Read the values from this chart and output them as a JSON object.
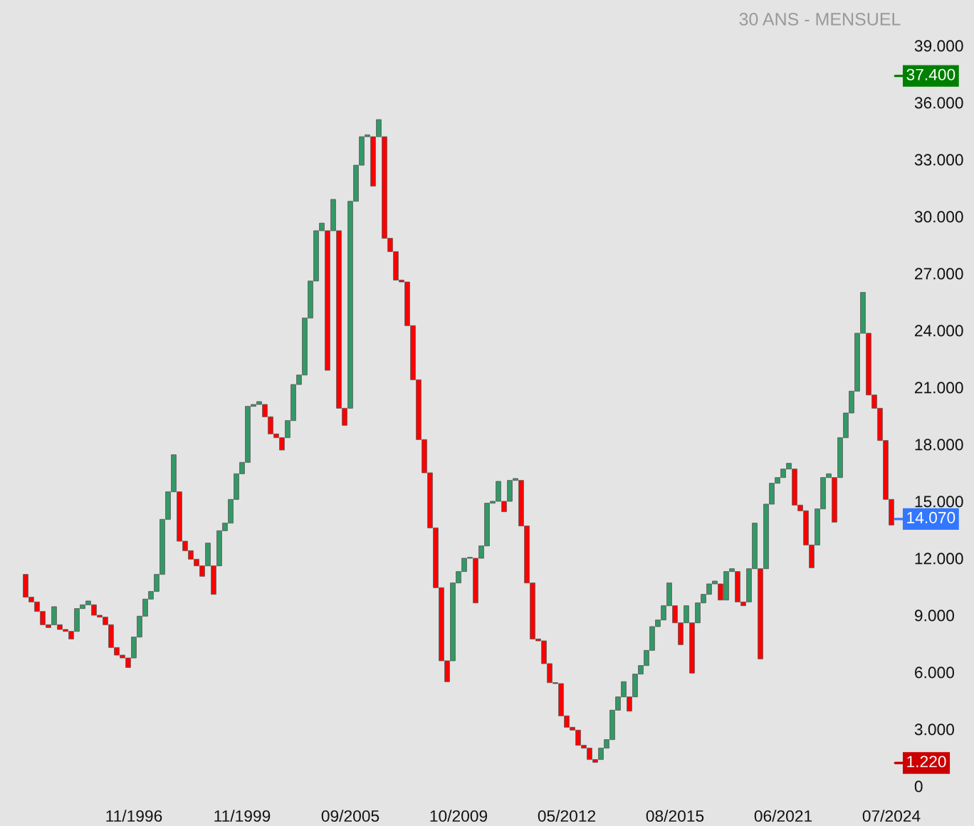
{
  "chart_data": {
    "type": "bar",
    "subtitle": "30 ANS - MENSUEL",
    "categories": [
      null,
      null,
      null,
      null,
      null,
      null,
      null,
      null,
      null,
      null,
      null,
      null,
      null,
      null,
      null,
      null,
      null,
      null,
      null,
      "11/1996",
      null,
      null,
      null,
      null,
      null,
      null,
      null,
      null,
      null,
      null,
      null,
      null,
      null,
      null,
      null,
      null,
      null,
      null,
      "11/1999",
      null,
      null,
      null,
      null,
      null,
      null,
      null,
      null,
      null,
      null,
      null,
      null,
      null,
      null,
      null,
      null,
      null,
      null,
      "09/2005",
      null,
      null,
      null,
      null,
      null,
      null,
      null,
      null,
      null,
      null,
      null,
      null,
      null,
      null,
      null,
      null,
      null,
      null,
      "10/2009",
      null,
      null,
      null,
      null,
      null,
      null,
      null,
      null,
      null,
      null,
      null,
      null,
      null,
      null,
      null,
      null,
      null,
      null,
      "05/2012",
      null,
      null,
      null,
      null,
      null,
      null,
      null,
      null,
      null,
      null,
      null,
      null,
      null,
      null,
      null,
      null,
      null,
      null,
      "08/2015",
      null,
      null,
      null,
      null,
      null,
      null,
      null,
      null,
      null,
      null,
      null,
      null,
      null,
      null,
      null,
      null,
      null,
      null,
      "06/2021",
      null,
      null,
      null,
      null,
      null,
      null,
      null,
      null,
      null,
      null,
      null,
      null,
      null,
      null,
      null,
      null,
      null,
      null,
      "07/2024"
    ],
    "base": [
      11150,
      9950,
      9700,
      9200,
      8500,
      8500,
      8500,
      8250,
      8150,
      8150,
      9350,
      9550,
      9550,
      9000,
      8900,
      8500,
      7300,
      6900,
      6750,
      6750,
      7850,
      8950,
      9850,
      10250,
      11150,
      14050,
      15500,
      15500,
      12900,
      12400,
      11950,
      11600,
      11600,
      11600,
      11600,
      13450,
      13850,
      15100,
      16450,
      17050,
      20000,
      20100,
      20100,
      19450,
      18550,
      18350,
      18350,
      19250,
      21150,
      21650,
      24650,
      26600,
      29250,
      29250,
      29250,
      29250,
      19900,
      19900,
      30800,
      32700,
      34200,
      34200,
      34200,
      34200,
      28850,
      28150,
      26650,
      26550,
      24250,
      21400,
      18250,
      16500,
      13600,
      10450,
      6600,
      6600,
      10700,
      11300,
      12000,
      12000,
      12000,
      12650,
      14900,
      15000,
      15000,
      15000,
      16100,
      16100,
      13700,
      10700,
      7750,
      7650,
      6450,
      5450,
      5400,
      3700,
      3100,
      2950,
      2150,
      2000,
      1400,
      1400,
      2000,
      2450,
      4000,
      4700,
      4700,
      4700,
      5900,
      6350,
      7150,
      8400,
      8750,
      9500,
      9500,
      8600,
      8600,
      8600,
      8600,
      9650,
      10100,
      10650,
      10650,
      9800,
      11300,
      11300,
      9700,
      9700,
      11450,
      11450,
      11450,
      14850,
      15950,
      16250,
      16700,
      16700,
      14800,
      14500,
      12700,
      12700,
      14600,
      16250,
      16250,
      16250,
      18350,
      19650,
      20800,
      23850,
      23850,
      20600,
      19900,
      18200,
      15100
    ],
    "values": [
      -1200,
      -250,
      -500,
      -700,
      -150,
      950,
      -250,
      -100,
      -400,
      1200,
      200,
      200,
      -550,
      -100,
      -400,
      -1200,
      -400,
      -150,
      -500,
      1100,
      1100,
      900,
      400,
      900,
      2900,
      1450,
      1950,
      -2600,
      -500,
      -450,
      -350,
      -550,
      1200,
      -1500,
      1850,
      400,
      1250,
      1350,
      600,
      2950,
      100,
      150,
      -650,
      -900,
      -200,
      -650,
      900,
      1900,
      500,
      3000,
      1950,
      2650,
      400,
      -7350,
      1650,
      -9350,
      -900,
      10900,
      1900,
      1500,
      100,
      -2600,
      900,
      -5350,
      -700,
      -1500,
      -100,
      -2300,
      -2850,
      -3150,
      -1750,
      -2900,
      -3150,
      -3850,
      -1100,
      4100,
      600,
      700,
      50,
      -2350,
      650,
      2250,
      100,
      1050,
      -550,
      1100,
      100,
      -2400,
      -3000,
      -2950,
      -100,
      -1200,
      -1000,
      -50,
      -1700,
      -600,
      -150,
      -800,
      -150,
      -600,
      -150,
      600,
      450,
      1550,
      700,
      800,
      -750,
      1200,
      450,
      800,
      1250,
      350,
      750,
      1200,
      -900,
      -1150,
      900,
      -2650,
      1050,
      450,
      550,
      150,
      -850,
      1500,
      150,
      -1600,
      -200,
      1750,
      2400,
      -4750,
      3400,
      1100,
      300,
      450,
      300,
      -1900,
      -300,
      -1800,
      -1200,
      1900,
      1650,
      200,
      -2350,
      2100,
      1300,
      1150,
      3050,
      2150,
      -3250,
      -700,
      -1700,
      -3100,
      -1350
    ],
    "colors": [
      "#ff0000",
      "#ff0000",
      "#ff0000",
      "#ff0000",
      "#ff0000",
      "#339966",
      "#ff0000",
      "#ff0000",
      "#ff0000",
      "#339966",
      "#339966",
      "#339966",
      "#ff0000",
      "#ff0000",
      "#ff0000",
      "#ff0000",
      "#ff0000",
      "#ff0000",
      "#ff0000",
      "#339966",
      "#339966",
      "#339966",
      "#339966",
      "#339966",
      "#339966",
      "#339966",
      "#339966",
      "#ff0000",
      "#ff0000",
      "#ff0000",
      "#ff0000",
      "#ff0000",
      "#339966",
      "#ff0000",
      "#339966",
      "#339966",
      "#339966",
      "#339966",
      "#339966",
      "#339966",
      "#339966",
      "#339966",
      "#ff0000",
      "#ff0000",
      "#ff0000",
      "#ff0000",
      "#339966",
      "#339966",
      "#339966",
      "#339966",
      "#339966",
      "#339966",
      "#339966",
      "#ff0000",
      "#339966",
      "#ff0000",
      "#ff0000",
      "#339966",
      "#339966",
      "#339966",
      "#339966",
      "#ff0000",
      "#339966",
      "#ff0000",
      "#ff0000",
      "#ff0000",
      "#ff0000",
      "#ff0000",
      "#ff0000",
      "#ff0000",
      "#ff0000",
      "#ff0000",
      "#ff0000",
      "#ff0000",
      "#ff0000",
      "#339966",
      "#339966",
      "#339966",
      "#339966",
      "#ff0000",
      "#339966",
      "#339966",
      "#339966",
      "#339966",
      "#ff0000",
      "#339966",
      "#339966",
      "#ff0000",
      "#ff0000",
      "#ff0000",
      "#ff0000",
      "#ff0000",
      "#ff0000",
      "#ff0000",
      "#ff0000",
      "#ff0000",
      "#ff0000",
      "#ff0000",
      "#ff0000",
      "#ff0000",
      "#ff0000",
      "#339966",
      "#339966",
      "#339966",
      "#339966",
      "#339966",
      "#ff0000",
      "#339966",
      "#339966",
      "#339966",
      "#339966",
      "#339966",
      "#339966",
      "#339966",
      "#ff0000",
      "#ff0000",
      "#339966",
      "#ff0000",
      "#339966",
      "#339966",
      "#339966",
      "#339966",
      "#ff0000",
      "#339966",
      "#339966",
      "#ff0000",
      "#ff0000",
      "#339966",
      "#339966",
      "#ff0000",
      "#339966",
      "#339966",
      "#339966",
      "#339966",
      "#339966",
      "#ff0000",
      "#ff0000",
      "#ff0000",
      "#ff0000",
      "#339966",
      "#339966",
      "#339966",
      "#ff0000",
      "#339966",
      "#339966",
      "#339966",
      "#339966",
      "#339966",
      "#ff0000",
      "#ff0000",
      "#ff0000",
      "#ff0000",
      "#ff0000"
    ],
    "ylim": [
      0,
      41400
    ],
    "yticks": [
      {
        "value": 0,
        "label": "0"
      },
      {
        "value": 3000,
        "label": "3.000"
      },
      {
        "value": 6000,
        "label": "6.000"
      },
      {
        "value": 9000,
        "label": "9.000"
      },
      {
        "value": 12000,
        "label": "12.000"
      },
      {
        "value": 15000,
        "label": "15.000"
      },
      {
        "value": 18000,
        "label": "18.000"
      },
      {
        "value": 21000,
        "label": "21.000"
      },
      {
        "value": 24000,
        "label": "24.000"
      },
      {
        "value": 27000,
        "label": "27.000"
      },
      {
        "value": 30000,
        "label": "30.000"
      },
      {
        "value": 33000,
        "label": "33.000"
      },
      {
        "value": 36000,
        "label": "36.000"
      },
      {
        "value": 39000,
        "label": "39.000"
      }
    ],
    "ref_lines": [
      {
        "axis": "y",
        "value": 37400,
        "label": "37.400",
        "color": "#008000"
      },
      {
        "axis": "y",
        "value": 14070,
        "label": "14.070",
        "color": "#3377ff"
      },
      {
        "axis": "y",
        "value": 1220,
        "label": "1.220",
        "color": "#cc0000"
      }
    ],
    "grid": false,
    "legend": false
  }
}
